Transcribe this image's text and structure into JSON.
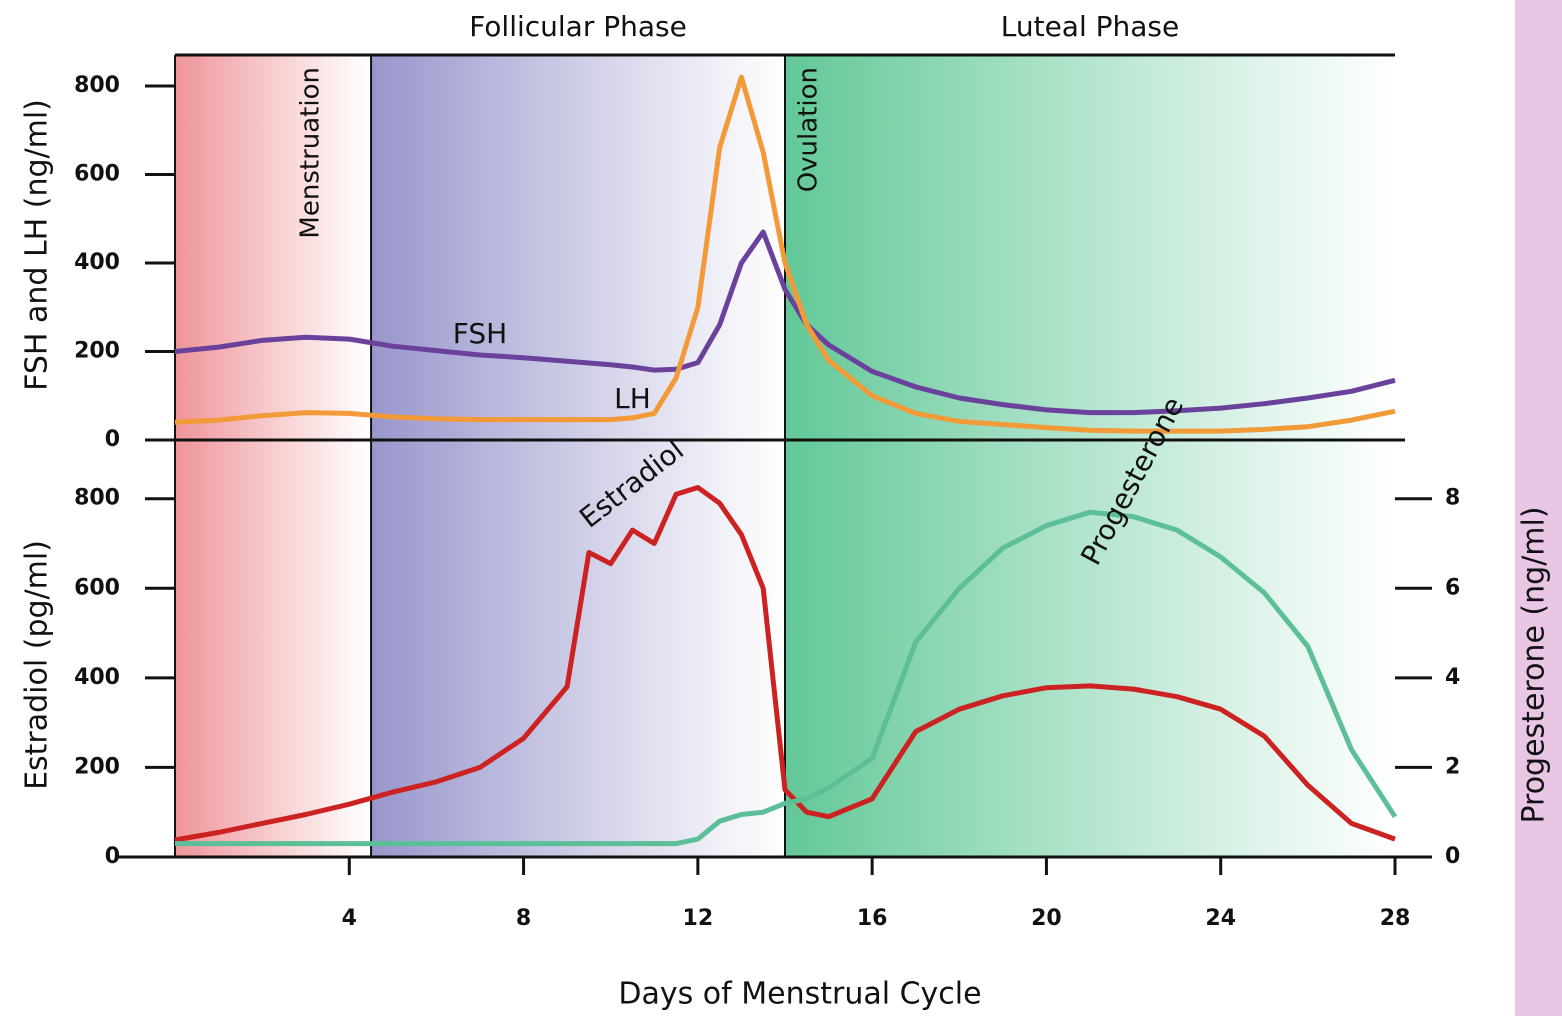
{
  "chart_data": [
    {
      "type": "line",
      "ylabel": "FSH and LH (ng/ml)",
      "x": [
        0,
        1,
        2,
        3,
        4,
        5,
        6,
        7,
        8,
        9,
        9.5,
        10,
        10.5,
        11,
        11.5,
        12,
        12.5,
        13,
        13.5,
        14,
        14.5,
        15,
        16,
        17,
        18,
        19,
        20,
        21,
        22,
        23,
        24,
        25,
        26,
        27,
        28
      ],
      "xlim": [
        0,
        28
      ],
      "ylim": [
        0,
        870
      ],
      "yticks": [
        0,
        200,
        400,
        600,
        800
      ],
      "phases": [
        {
          "label": "Follicular Phase",
          "x": [
            4.5,
            14
          ],
          "color": "#9896cc"
        },
        {
          "label": "Luteal Phase",
          "x": [
            14,
            28
          ],
          "color": "#62c898"
        }
      ],
      "regions": [
        {
          "label": "Menstruation",
          "x": [
            0,
            4.5
          ],
          "color": "#ef9499"
        }
      ],
      "markers": [
        {
          "label": "Ovulation",
          "x": 14
        }
      ],
      "series": [
        {
          "name": "FSH",
          "color": "#6a429c",
          "values": [
            200,
            210,
            225,
            232,
            228,
            212,
            202,
            192,
            186,
            178,
            174,
            170,
            165,
            158,
            160,
            175,
            260,
            400,
            470,
            340,
            260,
            215,
            155,
            120,
            95,
            80,
            68,
            62,
            62,
            66,
            72,
            82,
            95,
            110,
            135
          ]
        },
        {
          "name": "LH",
          "color": "#f29a38",
          "values": [
            40,
            45,
            55,
            62,
            60,
            52,
            48,
            46,
            46,
            46,
            46,
            46,
            50,
            60,
            140,
            300,
            660,
            820,
            650,
            400,
            260,
            180,
            100,
            60,
            42,
            35,
            28,
            22,
            20,
            20,
            20,
            24,
            30,
            45,
            65
          ]
        }
      ]
    },
    {
      "type": "line",
      "xlabel": "Days of Menstrual Cycle",
      "ylabel": "Estradiol (pg/ml)",
      "y2label": "Progesterone (ng/ml)",
      "x": [
        0,
        1,
        2,
        3,
        4,
        5,
        6,
        7,
        8,
        9,
        9.5,
        10,
        10.5,
        11,
        11.5,
        12,
        12.5,
        13,
        13.5,
        14,
        14.5,
        15,
        16,
        17,
        18,
        19,
        20,
        21,
        22,
        23,
        24,
        25,
        26,
        27,
        28
      ],
      "xlim": [
        0,
        28
      ],
      "xticks": [
        4,
        8,
        12,
        16,
        20,
        24,
        28
      ],
      "ylim": [
        0,
        920
      ],
      "yticks": [
        0,
        200,
        400,
        600,
        800
      ],
      "y2lim": [
        0,
        9.2
      ],
      "y2ticks": [
        0,
        2,
        4,
        6,
        8
      ],
      "series": [
        {
          "name": "Estradiol",
          "color": "#cc2222",
          "values": [
            38,
            55,
            75,
            95,
            118,
            145,
            168,
            200,
            265,
            380,
            680,
            655,
            730,
            700,
            810,
            825,
            790,
            720,
            600,
            150,
            100,
            90,
            130,
            280,
            330,
            360,
            378,
            382,
            375,
            358,
            330,
            270,
            160,
            75,
            40
          ]
        },
        {
          "name": "Progesterone",
          "color": "#5cbf98",
          "axis": "y2",
          "values": [
            0.3,
            0.3,
            0.3,
            0.3,
            0.3,
            0.3,
            0.3,
            0.3,
            0.3,
            0.3,
            0.3,
            0.3,
            0.3,
            0.3,
            0.3,
            0.4,
            0.8,
            0.95,
            1.0,
            1.2,
            1.3,
            1.55,
            2.2,
            4.8,
            6.0,
            6.9,
            7.4,
            7.7,
            7.6,
            7.3,
            6.7,
            5.9,
            4.7,
            2.4,
            0.9
          ]
        }
      ]
    }
  ]
}
